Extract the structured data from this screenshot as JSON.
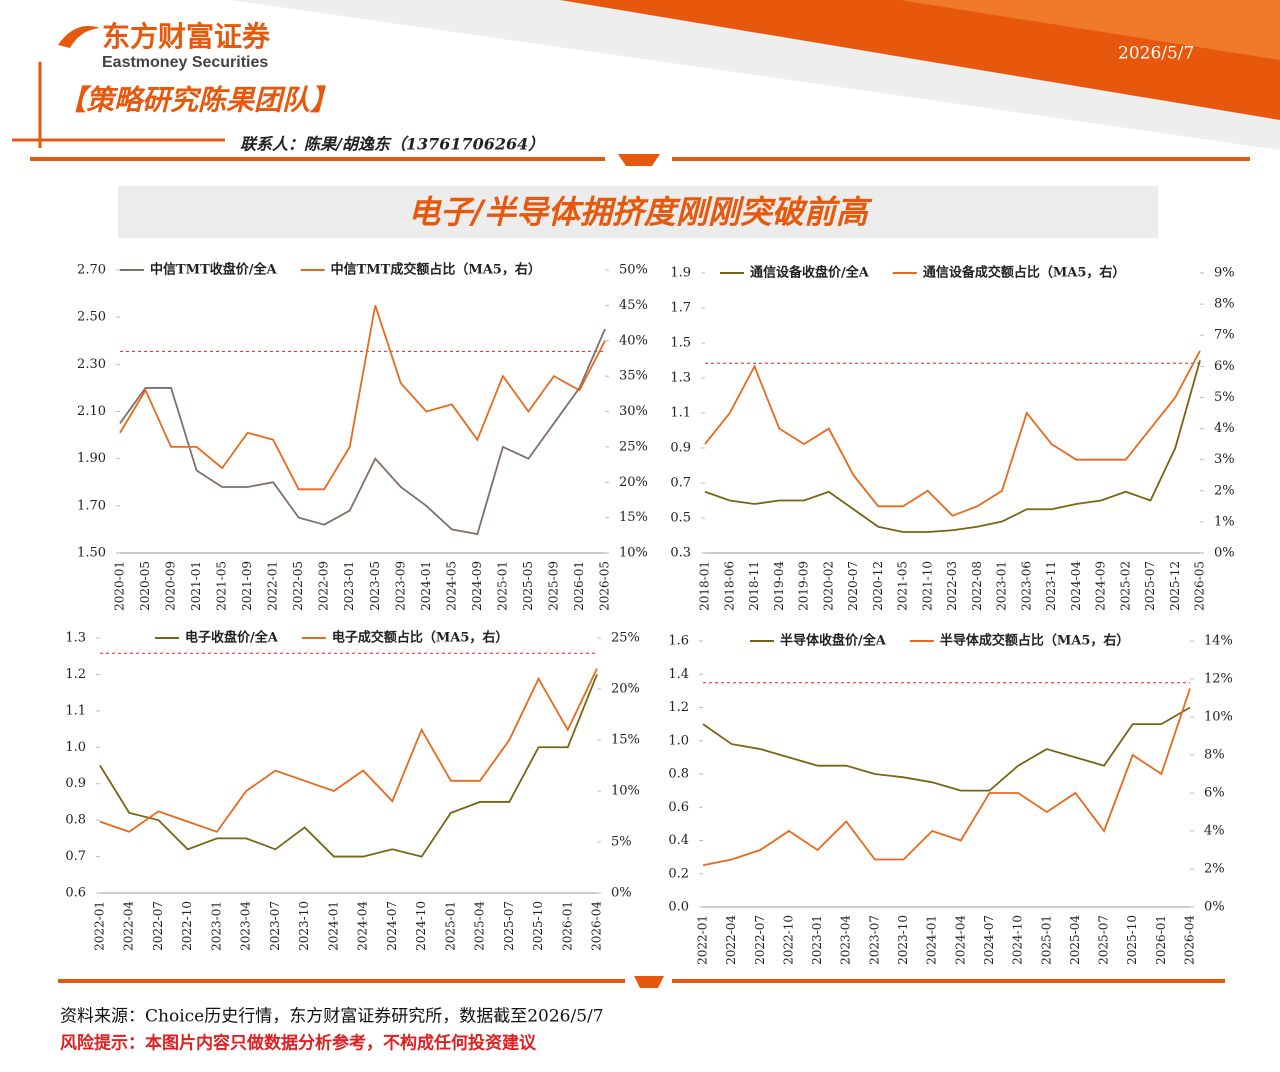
{
  "header": {
    "brand_cn": "东方财富证券",
    "brand_en": "Eastmoney Securities",
    "date": "2026/5/7",
    "team": "【策略研究陈果团队】",
    "contact": "联系人：陈果/胡逸东（13761706264）"
  },
  "title": "电子/半导体拥挤度刚刚突破前高",
  "chart_data": [
    {
      "type": "line",
      "categories": [
        "2020-01",
        "2020-05",
        "2020-09",
        "2021-01",
        "2021-05",
        "2021-09",
        "2022-01",
        "2022-05",
        "2022-09",
        "2023-01",
        "2023-05",
        "2023-09",
        "2024-01",
        "2024-05",
        "2024-09",
        "2025-01",
        "2025-05",
        "2025-09",
        "2026-01",
        "2026-05"
      ],
      "series": [
        {
          "name": "中信TMT收盘价/全A",
          "color": "#7f6f6a",
          "axis": "y",
          "values": [
            2.05,
            2.2,
            2.2,
            1.85,
            1.78,
            1.78,
            1.8,
            1.65,
            1.62,
            1.68,
            1.9,
            1.78,
            1.7,
            1.6,
            1.58,
            1.95,
            1.9,
            2.05,
            2.2,
            2.45
          ]
        },
        {
          "name": "中信TMT成交额占比（MA5，右）",
          "color": "#e8691c",
          "axis": "y2",
          "values": [
            27,
            33,
            25,
            25,
            22,
            27,
            26,
            19,
            19,
            25,
            45,
            34,
            30,
            31,
            26,
            35,
            30,
            35,
            33,
            40
          ]
        }
      ],
      "ylim": [
        1.5,
        2.7
      ],
      "yticks": [
        {
          "value": 1.5,
          "label": "1.50"
        },
        {
          "value": 1.7,
          "label": "1.70"
        },
        {
          "value": 1.9,
          "label": "1.90"
        },
        {
          "value": 2.1,
          "label": "2.10"
        },
        {
          "value": 2.3,
          "label": "2.30"
        },
        {
          "value": 2.5,
          "label": "2.50"
        },
        {
          "value": 2.7,
          "label": "2.70"
        }
      ],
      "y2lim": [
        10,
        50
      ],
      "y2ticks": [
        {
          "value": 10,
          "label": "10%"
        },
        {
          "value": 15,
          "label": "15%"
        },
        {
          "value": 20,
          "label": "20%"
        },
        {
          "value": 25,
          "label": "25%"
        },
        {
          "value": 30,
          "label": "30%"
        },
        {
          "value": 35,
          "label": "35%"
        },
        {
          "value": 40,
          "label": "40%"
        },
        {
          "value": 45,
          "label": "45%"
        },
        {
          "value": 50,
          "label": "50%"
        }
      ],
      "reference_line": {
        "value": 38.5,
        "axis": "y2",
        "color": "#e02020"
      }
    },
    {
      "type": "line",
      "categories": [
        "2018-01",
        "2018-06",
        "2018-11",
        "2019-04",
        "2019-09",
        "2020-02",
        "2020-07",
        "2020-12",
        "2021-05",
        "2021-10",
        "2022-03",
        "2022-08",
        "2023-01",
        "2023-06",
        "2023-11",
        "2024-04",
        "2024-09",
        "2025-02",
        "2025-07",
        "2025-12",
        "2026-05"
      ],
      "series": [
        {
          "name": "通信设备收盘价/全A",
          "color": "#7a6312",
          "axis": "y",
          "values": [
            0.65,
            0.6,
            0.58,
            0.6,
            0.6,
            0.65,
            0.55,
            0.45,
            0.42,
            0.42,
            0.43,
            0.45,
            0.48,
            0.55,
            0.55,
            0.58,
            0.6,
            0.65,
            0.6,
            0.9,
            1.4
          ]
        },
        {
          "name": "通信设备成交额占比（MA5，右）",
          "color": "#e8691c",
          "axis": "y2",
          "values": [
            3.5,
            4.5,
            6,
            4,
            3.5,
            4,
            2.5,
            1.5,
            1.5,
            2,
            1.2,
            1.5,
            2,
            4.5,
            3.5,
            3,
            3,
            3,
            4,
            5,
            6.5
          ]
        }
      ],
      "ylim": [
        0.3,
        1.9
      ],
      "yticks": [
        0.3,
        0.5,
        0.7,
        0.9,
        1.1,
        1.3,
        1.5,
        1.7,
        1.9
      ],
      "y2lim": [
        0,
        9
      ],
      "y2ticks": [
        {
          "value": 0,
          "label": "0%"
        },
        {
          "value": 1,
          "label": "1%"
        },
        {
          "value": 2,
          "label": "2%"
        },
        {
          "value": 3,
          "label": "3%"
        },
        {
          "value": 4,
          "label": "4%"
        },
        {
          "value": 5,
          "label": "5%"
        },
        {
          "value": 6,
          "label": "6%"
        },
        {
          "value": 7,
          "label": "7%"
        },
        {
          "value": 8,
          "label": "8%"
        },
        {
          "value": 9,
          "label": "9%"
        }
      ],
      "reference_line": {
        "value": 6.1,
        "axis": "y2",
        "color": "#e02020"
      }
    },
    {
      "type": "line",
      "categories": [
        "2022-01",
        "2022-04",
        "2022-07",
        "2022-10",
        "2023-01",
        "2023-04",
        "2023-07",
        "2023-10",
        "2024-01",
        "2024-04",
        "2024-07",
        "2024-10",
        "2025-01",
        "2025-04",
        "2025-07",
        "2025-10",
        "2026-01",
        "2026-04"
      ],
      "series": [
        {
          "name": "电子收盘价/全A",
          "color": "#7a6312",
          "axis": "y",
          "values": [
            0.95,
            0.82,
            0.8,
            0.72,
            0.75,
            0.75,
            0.72,
            0.78,
            0.7,
            0.7,
            0.72,
            0.7,
            0.82,
            0.85,
            0.85,
            1.0,
            1.0,
            1.2
          ]
        },
        {
          "name": "电子成交额占比（MA5，右）",
          "color": "#e8691c",
          "axis": "y2",
          "values": [
            7,
            6,
            8,
            7,
            6,
            10,
            12,
            11,
            10,
            12,
            9,
            16,
            11,
            11,
            15,
            21,
            16,
            22
          ]
        }
      ],
      "ylim": [
        0.6,
        1.3
      ],
      "yticks": [
        0.6,
        0.7,
        0.8,
        0.9,
        {
          "value": 1,
          "label": "1.0"
        },
        1.1,
        1.2,
        1.3
      ],
      "y2lim": [
        0,
        25
      ],
      "y2ticks": [
        {
          "value": 0,
          "label": "0%"
        },
        {
          "value": 5,
          "label": "5%"
        },
        {
          "value": 10,
          "label": "10%"
        },
        {
          "value": 15,
          "label": "15%"
        },
        {
          "value": 20,
          "label": "20%"
        },
        {
          "value": 25,
          "label": "25%"
        }
      ],
      "reference_line": {
        "value": 23.5,
        "axis": "y2",
        "color": "#e02020"
      }
    },
    {
      "type": "line",
      "categories": [
        "2022-01",
        "2022-04",
        "2022-07",
        "2022-10",
        "2023-01",
        "2023-04",
        "2023-07",
        "2023-10",
        "2024-01",
        "2024-04",
        "2024-07",
        "2024-10",
        "2025-01",
        "2025-04",
        "2025-07",
        "2025-10",
        "2026-01",
        "2026-04"
      ],
      "series": [
        {
          "name": "半导体收盘价/全A",
          "color": "#7a6312",
          "axis": "y",
          "values": [
            1.1,
            0.98,
            0.95,
            0.9,
            0.85,
            0.85,
            0.8,
            0.78,
            0.75,
            0.7,
            0.7,
            0.85,
            0.95,
            0.9,
            0.85,
            1.1,
            1.1,
            1.2
          ]
        },
        {
          "name": "半导体成交额占比（MA5，右）",
          "color": "#e8691c",
          "axis": "y2",
          "values": [
            2.2,
            2.5,
            3,
            4,
            3,
            4.5,
            2.5,
            2.5,
            4,
            3.5,
            6,
            6,
            5,
            6,
            4,
            8,
            7,
            11.5
          ]
        }
      ],
      "ylim": [
        0,
        1.6
      ],
      "yticks": [
        {
          "value": 0,
          "label": "0.0"
        },
        0.2,
        0.4,
        0.6,
        0.8,
        {
          "value": 1,
          "label": "1.0"
        },
        1.2,
        1.4,
        1.6
      ],
      "y2lim": [
        0,
        14
      ],
      "y2ticks": [
        {
          "value": 0,
          "label": "0%"
        },
        {
          "value": 2,
          "label": "2%"
        },
        {
          "value": 4,
          "label": "4%"
        },
        {
          "value": 6,
          "label": "6%"
        },
        {
          "value": 8,
          "label": "8%"
        },
        {
          "value": 10,
          "label": "10%"
        },
        {
          "value": 12,
          "label": "12%"
        },
        {
          "value": 14,
          "label": "14%"
        }
      ],
      "reference_line": {
        "value": 11.8,
        "axis": "y2",
        "color": "#e02020"
      }
    }
  ],
  "footer": {
    "source": "资料来源：Choice历史行情，东方财富证券研究所，数据截至2026/5/7",
    "risk": "风险提示：本图片内容只做数据分析参考，不构成任何投资建议"
  }
}
